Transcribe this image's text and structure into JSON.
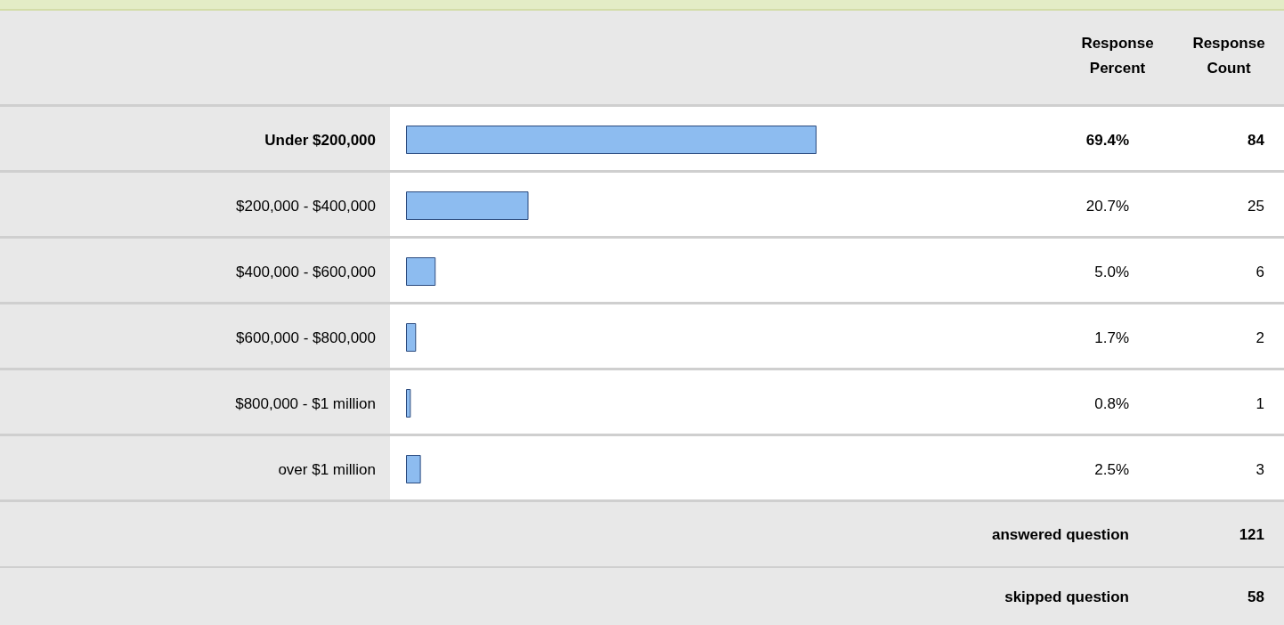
{
  "chart_data": {
    "type": "bar",
    "orientation": "horizontal",
    "categories": [
      "Under $200,000",
      "$200,000 - $400,000",
      "$400,000 - $600,000",
      "$600,000 - $800,000",
      "$800,000 - $1 million",
      "over $1 million"
    ],
    "values": [
      69.4,
      20.7,
      5.0,
      1.7,
      0.8,
      2.5
    ],
    "value_labels": [
      "69.4%",
      "20.7%",
      "5.0%",
      "1.7%",
      "0.8%",
      "2.5%"
    ],
    "color": "#8dbcf0",
    "tick_labels": "y",
    "annotations": [
      "Response Percent",
      "Response Count",
      "84",
      "25",
      "6",
      "2",
      "1",
      "3",
      "answered question",
      "121",
      "skipped question",
      "58"
    ]
  }
}
